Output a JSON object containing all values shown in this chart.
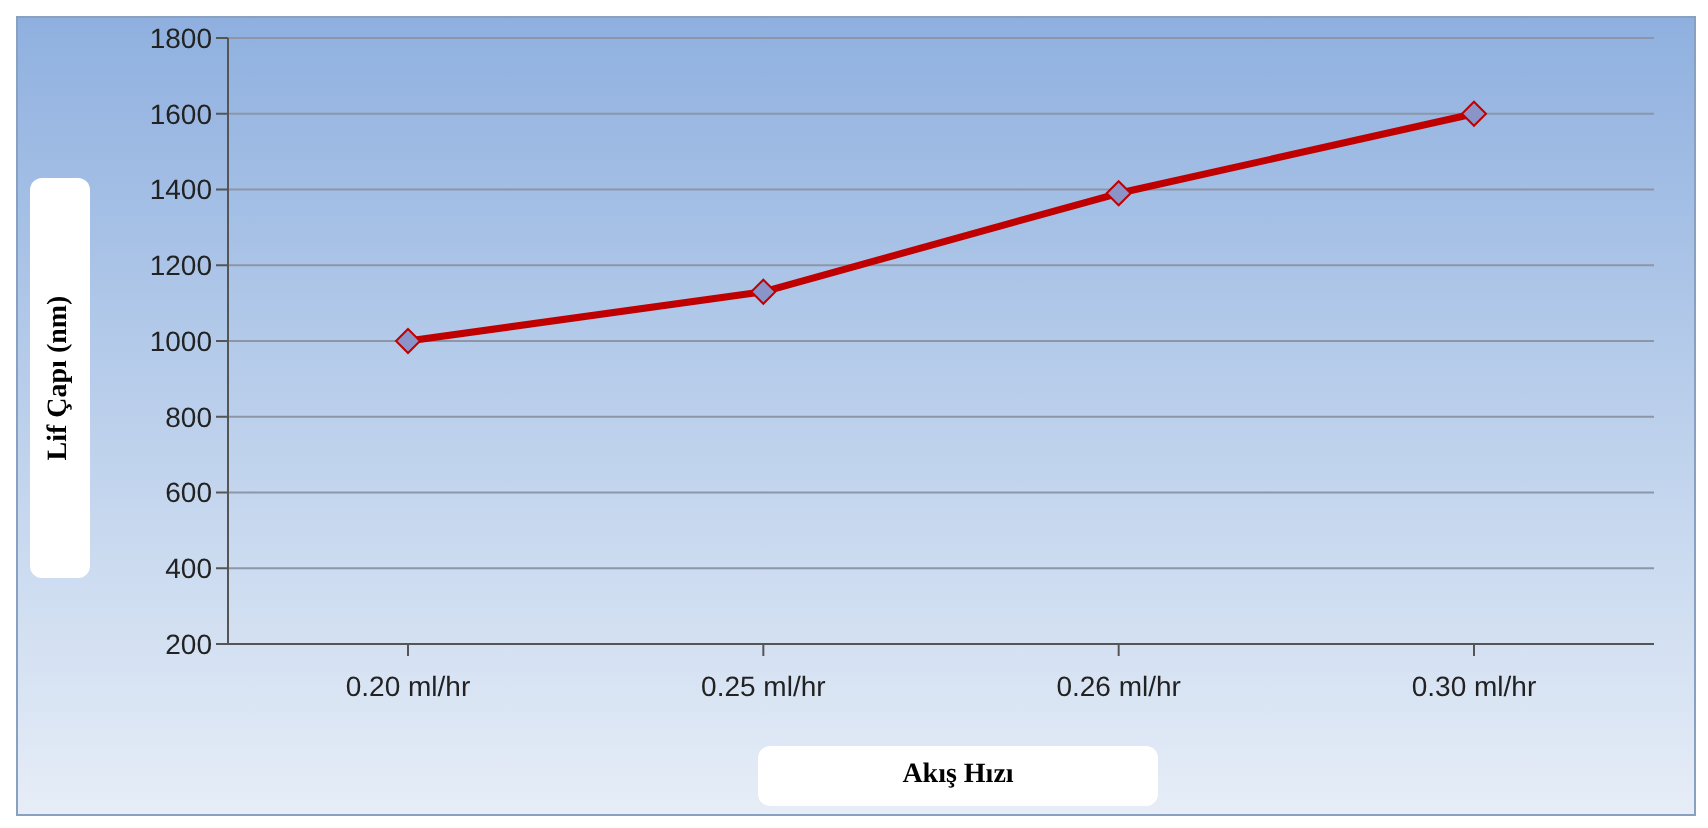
{
  "chart_data": {
    "type": "line",
    "xlabel": "Akış Hızı",
    "ylabel": "Lif Çapı (nm)",
    "categories": [
      "0.20 ml/hr",
      "0.25 ml/hr",
      "0.26 ml/hr",
      "0.30 ml/hr"
    ],
    "series": [
      {
        "color": "#c00000",
        "values": [
          1000,
          1130,
          1390,
          1600
        ]
      }
    ],
    "ylim": [
      200,
      1800
    ],
    "yticks": [
      200,
      400,
      600,
      800,
      1000,
      1200,
      1400,
      1600,
      1800
    ],
    "grid": "y",
    "marker": "diamond",
    "line_style": "solid",
    "legend": false
  }
}
